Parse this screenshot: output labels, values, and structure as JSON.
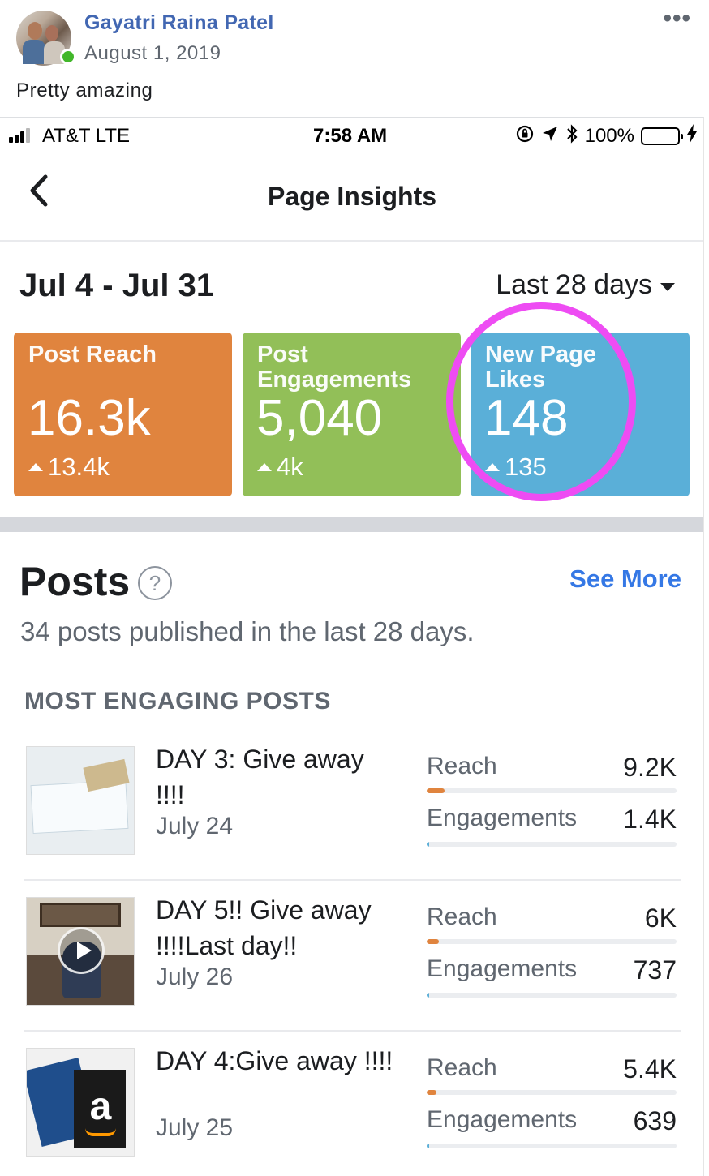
{
  "post": {
    "author": "Gayatri Raina Patel",
    "date": "August 1, 2019",
    "text": "Pretty amazing",
    "more_icon": "more-horizontal-icon"
  },
  "status_bar": {
    "carrier": "AT&T   LTE",
    "time": "7:58 AM",
    "battery": "100%",
    "battery_level": 1.0
  },
  "nav": {
    "title": "Page Insights"
  },
  "summary": {
    "range": "Jul 4 - Jul 31",
    "period": "Last 28 days",
    "cards": [
      {
        "label": "Post Reach",
        "value": "16.3k",
        "delta": "13.4k",
        "color": "#e0843e"
      },
      {
        "label": "Post Engagements",
        "value": "5,040",
        "delta": "4k",
        "color": "#92bf58"
      },
      {
        "label": "New Page Likes",
        "value": "148",
        "delta": "135",
        "color": "#5aafd8"
      }
    ],
    "highlight_color": "#ee4cf3"
  },
  "posts": {
    "title": "Posts",
    "see_more": "See More",
    "subtitle": "34 posts published in the last 28 days.",
    "section_label": "MOST ENGAGING POSTS",
    "items": [
      {
        "title": "DAY 3: Give away !!!!",
        "date": "July 24",
        "reach_label": "Reach",
        "reach_value": "9.2K",
        "reach_fraction": 0.07,
        "engagements_label": "Engagements",
        "engagements_value": "1.4K",
        "engagements_fraction": 0.01
      },
      {
        "title": "DAY 5!! Give away !!!!Last day!!",
        "date": "July 26",
        "reach_label": "Reach",
        "reach_value": "6K",
        "reach_fraction": 0.05,
        "engagements_label": "Engagements",
        "engagements_value": "737",
        "engagements_fraction": 0.007
      },
      {
        "title": "DAY 4:Give away !!!!",
        "date": "July 25",
        "reach_label": "Reach",
        "reach_value": "5.4K",
        "reach_fraction": 0.04,
        "engagements_label": "Engagements",
        "engagements_value": "639",
        "engagements_fraction": 0.006
      }
    ]
  }
}
